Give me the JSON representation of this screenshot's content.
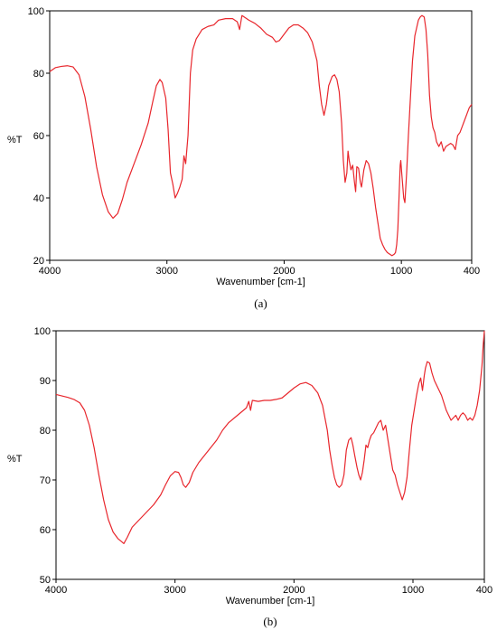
{
  "line_color": "#e8262c",
  "chart_data": [
    {
      "type": "line",
      "panel_label": "(a)",
      "xlabel": "Wavenumber [cm-1]",
      "ylabel": "%T",
      "xlim": [
        4000,
        400
      ],
      "ylim": [
        20,
        100
      ],
      "x_ticks": [
        4000,
        3000,
        2000,
        1000,
        400
      ],
      "y_ticks": [
        20,
        40,
        60,
        80,
        100
      ],
      "grid": false,
      "series": [
        {
          "points": [
            [
              4000,
              80.5
            ],
            [
              3950,
              81.8
            ],
            [
              3900,
              82.2
            ],
            [
              3850,
              82.4
            ],
            [
              3800,
              82.0
            ],
            [
              3750,
              79.5
            ],
            [
              3700,
              72.5
            ],
            [
              3650,
              62.0
            ],
            [
              3600,
              50.0
            ],
            [
              3550,
              41.0
            ],
            [
              3500,
              35.5
            ],
            [
              3460,
              33.5
            ],
            [
              3420,
              35.0
            ],
            [
              3380,
              39.5
            ],
            [
              3340,
              45.0
            ],
            [
              3280,
              51.0
            ],
            [
              3220,
              57.0
            ],
            [
              3160,
              64.0
            ],
            [
              3120,
              71.0
            ],
            [
              3090,
              76.0
            ],
            [
              3060,
              78.0
            ],
            [
              3040,
              77.0
            ],
            [
              3010,
              72.0
            ],
            [
              2990,
              62.0
            ],
            [
              2970,
              48.0
            ],
            [
              2950,
              44.5
            ],
            [
              2930,
              40.0
            ],
            [
              2910,
              41.5
            ],
            [
              2890,
              43.5
            ],
            [
              2870,
              46.0
            ],
            [
              2855,
              53.5
            ],
            [
              2840,
              51.0
            ],
            [
              2820,
              60.0
            ],
            [
              2800,
              80.0
            ],
            [
              2780,
              87.5
            ],
            [
              2750,
              91.0
            ],
            [
              2700,
              94.0
            ],
            [
              2650,
              95.0
            ],
            [
              2600,
              95.5
            ],
            [
              2560,
              97.0
            ],
            [
              2500,
              97.5
            ],
            [
              2440,
              97.5
            ],
            [
              2400,
              96.5
            ],
            [
              2380,
              94.0
            ],
            [
              2360,
              98.5
            ],
            [
              2340,
              98.0
            ],
            [
              2300,
              97.0
            ],
            [
              2250,
              96.0
            ],
            [
              2200,
              94.5
            ],
            [
              2150,
              92.5
            ],
            [
              2100,
              91.5
            ],
            [
              2070,
              90.0
            ],
            [
              2040,
              90.5
            ],
            [
              2000,
              92.5
            ],
            [
              1960,
              94.5
            ],
            [
              1920,
              95.5
            ],
            [
              1880,
              95.5
            ],
            [
              1840,
              94.5
            ],
            [
              1800,
              93.0
            ],
            [
              1760,
              90.0
            ],
            [
              1720,
              84.0
            ],
            [
              1700,
              76.0
            ],
            [
              1680,
              70.0
            ],
            [
              1660,
              66.5
            ],
            [
              1640,
              70.0
            ],
            [
              1620,
              76.0
            ],
            [
              1590,
              79.0
            ],
            [
              1570,
              79.5
            ],
            [
              1550,
              78.0
            ],
            [
              1530,
              74.0
            ],
            [
              1510,
              64.0
            ],
            [
              1495,
              52.0
            ],
            [
              1480,
              45.0
            ],
            [
              1465,
              48.0
            ],
            [
              1455,
              55.0
            ],
            [
              1445,
              52.0
            ],
            [
              1430,
              49.0
            ],
            [
              1415,
              50.5
            ],
            [
              1400,
              45.0
            ],
            [
              1390,
              42.0
            ],
            [
              1380,
              50.0
            ],
            [
              1365,
              49.5
            ],
            [
              1350,
              45.0
            ],
            [
              1340,
              43.5
            ],
            [
              1320,
              49.0
            ],
            [
              1300,
              52.0
            ],
            [
              1280,
              51.0
            ],
            [
              1260,
              48.0
            ],
            [
              1240,
              43.0
            ],
            [
              1220,
              37.0
            ],
            [
              1200,
              32.0
            ],
            [
              1180,
              27.0
            ],
            [
              1160,
              25.0
            ],
            [
              1140,
              23.5
            ],
            [
              1120,
              22.5
            ],
            [
              1100,
              22.0
            ],
            [
              1080,
              21.5
            ],
            [
              1060,
              22.0
            ],
            [
              1050,
              22.5
            ],
            [
              1040,
              25.0
            ],
            [
              1030,
              30.0
            ],
            [
              1020,
              40.0
            ],
            [
              1010,
              50.5
            ],
            [
              1005,
              52.0
            ],
            [
              995,
              47.0
            ],
            [
              980,
              40.0
            ],
            [
              970,
              38.5
            ],
            [
              955,
              48.0
            ],
            [
              940,
              60.0
            ],
            [
              920,
              74.0
            ],
            [
              905,
              84.0
            ],
            [
              895,
              88.0
            ],
            [
              885,
              92.0
            ],
            [
              870,
              94.5
            ],
            [
              855,
              97.0
            ],
            [
              840,
              98.0
            ],
            [
              825,
              98.5
            ],
            [
              805,
              98.0
            ],
            [
              790,
              94.0
            ],
            [
              775,
              86.0
            ],
            [
              760,
              73.0
            ],
            [
              745,
              66.0
            ],
            [
              730,
              62.5
            ],
            [
              715,
              61.0
            ],
            [
              700,
              58.0
            ],
            [
              680,
              56.5
            ],
            [
              660,
              58.0
            ],
            [
              640,
              55.0
            ],
            [
              620,
              56.5
            ],
            [
              600,
              57.0
            ],
            [
              580,
              57.5
            ],
            [
              560,
              57.0
            ],
            [
              540,
              55.5
            ],
            [
              520,
              60.0
            ],
            [
              500,
              61.0
            ],
            [
              480,
              63.0
            ],
            [
              460,
              65.0
            ],
            [
              440,
              67.0
            ],
            [
              420,
              69.0
            ],
            [
              400,
              70.0
            ]
          ]
        }
      ]
    },
    {
      "type": "line",
      "panel_label": "(b)",
      "xlabel": "Wavenumber [cm-1]",
      "ylabel": "%T",
      "xlim": [
        4000,
        400
      ],
      "ylim": [
        50,
        100
      ],
      "x_ticks": [
        4000,
        3000,
        2000,
        1000,
        400
      ],
      "y_ticks": [
        50,
        60,
        70,
        80,
        90,
        100
      ],
      "grid": false,
      "series": [
        {
          "points": [
            [
              4000,
              87.2
            ],
            [
              3950,
              86.9
            ],
            [
              3900,
              86.6
            ],
            [
              3850,
              86.2
            ],
            [
              3800,
              85.5
            ],
            [
              3760,
              84.0
            ],
            [
              3720,
              81.0
            ],
            [
              3680,
              76.5
            ],
            [
              3640,
              71.0
            ],
            [
              3600,
              66.0
            ],
            [
              3560,
              62.0
            ],
            [
              3520,
              59.5
            ],
            [
              3480,
              58.2
            ],
            [
              3450,
              57.6
            ],
            [
              3430,
              57.2
            ],
            [
              3400,
              58.5
            ],
            [
              3360,
              60.5
            ],
            [
              3300,
              62.0
            ],
            [
              3240,
              63.5
            ],
            [
              3180,
              65.0
            ],
            [
              3120,
              67.0
            ],
            [
              3080,
              69.0
            ],
            [
              3040,
              70.8
            ],
            [
              3000,
              71.7
            ],
            [
              2970,
              71.5
            ],
            [
              2950,
              70.5
            ],
            [
              2930,
              69.0
            ],
            [
              2910,
              68.5
            ],
            [
              2880,
              69.5
            ],
            [
              2850,
              71.5
            ],
            [
              2800,
              73.5
            ],
            [
              2750,
              75.0
            ],
            [
              2700,
              76.5
            ],
            [
              2650,
              78.0
            ],
            [
              2600,
              80.0
            ],
            [
              2550,
              81.5
            ],
            [
              2500,
              82.5
            ],
            [
              2450,
              83.5
            ],
            [
              2400,
              84.5
            ],
            [
              2380,
              85.8
            ],
            [
              2365,
              84.0
            ],
            [
              2350,
              86.0
            ],
            [
              2300,
              85.8
            ],
            [
              2250,
              86.0
            ],
            [
              2200,
              86.0
            ],
            [
              2150,
              86.2
            ],
            [
              2100,
              86.5
            ],
            [
              2050,
              87.5
            ],
            [
              2000,
              88.5
            ],
            [
              1950,
              89.3
            ],
            [
              1900,
              89.6
            ],
            [
              1850,
              89.0
            ],
            [
              1800,
              87.5
            ],
            [
              1760,
              85.0
            ],
            [
              1720,
              80.0
            ],
            [
              1700,
              76.0
            ],
            [
              1680,
              73.0
            ],
            [
              1660,
              70.5
            ],
            [
              1640,
              69.0
            ],
            [
              1620,
              68.5
            ],
            [
              1600,
              69.0
            ],
            [
              1580,
              71.0
            ],
            [
              1560,
              76.0
            ],
            [
              1540,
              78.0
            ],
            [
              1520,
              78.5
            ],
            [
              1505,
              77.0
            ],
            [
              1490,
              75.0
            ],
            [
              1470,
              72.5
            ],
            [
              1455,
              71.0
            ],
            [
              1440,
              70.0
            ],
            [
              1425,
              71.5
            ],
            [
              1410,
              74.0
            ],
            [
              1395,
              77.0
            ],
            [
              1380,
              76.5
            ],
            [
              1365,
              78.0
            ],
            [
              1350,
              79.0
            ],
            [
              1330,
              79.5
            ],
            [
              1310,
              80.5
            ],
            [
              1290,
              81.5
            ],
            [
              1270,
              82.0
            ],
            [
              1250,
              80.0
            ],
            [
              1230,
              81.0
            ],
            [
              1210,
              78.0
            ],
            [
              1190,
              75.0
            ],
            [
              1170,
              72.0
            ],
            [
              1150,
              71.0
            ],
            [
              1130,
              69.0
            ],
            [
              1110,
              67.5
            ],
            [
              1090,
              66.0
            ],
            [
              1070,
              67.5
            ],
            [
              1050,
              70.5
            ],
            [
              1030,
              76.0
            ],
            [
              1010,
              81.0
            ],
            [
              990,
              84.0
            ],
            [
              970,
              87.0
            ],
            [
              950,
              89.5
            ],
            [
              935,
              90.5
            ],
            [
              920,
              88.0
            ],
            [
              905,
              91.0
            ],
            [
              895,
              92.5
            ],
            [
              880,
              93.8
            ],
            [
              860,
              93.5
            ],
            [
              840,
              91.5
            ],
            [
              820,
              90.0
            ],
            [
              800,
              89.0
            ],
            [
              780,
              88.0
            ],
            [
              760,
              87.0
            ],
            [
              740,
              85.5
            ],
            [
              720,
              84.0
            ],
            [
              700,
              83.0
            ],
            [
              680,
              82.0
            ],
            [
              660,
              82.5
            ],
            [
              640,
              83.0
            ],
            [
              620,
              82.0
            ],
            [
              600,
              83.0
            ],
            [
              580,
              83.5
            ],
            [
              560,
              83.0
            ],
            [
              540,
              82.0
            ],
            [
              520,
              82.5
            ],
            [
              500,
              82.0
            ],
            [
              480,
              83.0
            ],
            [
              460,
              85.0
            ],
            [
              440,
              88.0
            ],
            [
              420,
              93.0
            ],
            [
              410,
              97.0
            ],
            [
              400,
              100.0
            ]
          ]
        }
      ]
    }
  ]
}
